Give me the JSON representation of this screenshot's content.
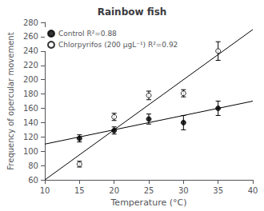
{
  "chart_data": {
    "type": "scatter",
    "title": "Rainbow fish",
    "xlabel": "Temperature (°C)",
    "ylabel": "Frequency of opercular movement",
    "xlim": [
      10,
      40
    ],
    "ylim": [
      60,
      280
    ],
    "xticks": [
      10,
      15,
      20,
      25,
      30,
      35,
      40
    ],
    "yticks": [
      60,
      80,
      100,
      120,
      140,
      160,
      180,
      200,
      220,
      240,
      260,
      280
    ],
    "grid": false,
    "legend": "upper left",
    "series": [
      {
        "name": "Control R²=0.88",
        "type": "scatter",
        "marker": "filled",
        "color": "black",
        "x": [
          15,
          20,
          25,
          30,
          35
        ],
        "values": [
          118,
          129,
          145,
          140,
          160
        ],
        "yerr": [
          5,
          5,
          7,
          10,
          10
        ]
      },
      {
        "name": "Chlorpyrifos (200 μgL⁻¹) R²=0.92",
        "type": "scatter",
        "marker": "open",
        "color": "black",
        "x": [
          15,
          20,
          25,
          30,
          35
        ],
        "values": [
          82,
          148,
          178,
          181,
          240
        ],
        "yerr": [
          4,
          5,
          6,
          5,
          13
        ]
      },
      {
        "type": "line",
        "line_style": "solid",
        "color": "black",
        "x": [
          10,
          40
        ],
        "values": [
          110,
          170
        ]
      },
      {
        "type": "line",
        "line_style": "solid",
        "color": "black",
        "x": [
          10,
          40
        ],
        "values": [
          60,
          270
        ]
      }
    ]
  }
}
